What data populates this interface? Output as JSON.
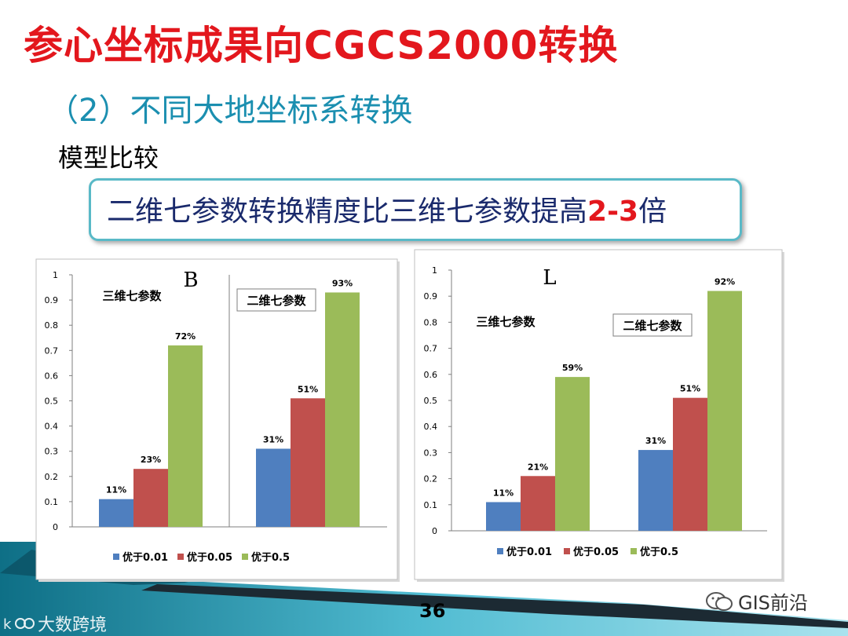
{
  "slide": {
    "title": "参心坐标成果向CGCS2000转换",
    "subtitle": "（2）不同大地坐标系转换",
    "section": "模型比较",
    "callout_prefix": "二维七参数转换精度比三维七参数提高",
    "callout_emphasis": "2-3",
    "callout_suffix": "倍",
    "page_number": "36",
    "watermark_right": "GIS前沿",
    "watermark_left": "大数跨境"
  },
  "colors": {
    "title": "#e3171d",
    "subtitle": "#1b8fb0",
    "callout_border": "#59b9c7",
    "series": [
      "#4f7fbf",
      "#c0504d",
      "#9bbb59"
    ]
  },
  "chart_data": [
    {
      "type": "bar",
      "title": "B",
      "groups": [
        "三维七参数",
        "二维七参数"
      ],
      "legend": [
        "优于0.01",
        "优于0.05",
        "优于0.5"
      ],
      "series": [
        {
          "name": "优于0.01",
          "values": [
            0.11,
            0.31
          ],
          "labels": [
            "11%",
            "31%"
          ]
        },
        {
          "name": "优于0.05",
          "values": [
            0.23,
            0.51
          ],
          "labels": [
            "23%",
            "51%"
          ]
        },
        {
          "name": "优于0.5",
          "values": [
            0.72,
            0.93
          ],
          "labels": [
            "72%",
            "93%"
          ]
        }
      ],
      "ylim": [
        0,
        1
      ],
      "yticks": [
        "0",
        "0.1",
        "0.2",
        "0.3",
        "0.4",
        "0.5",
        "0.6",
        "0.7",
        "0.8",
        "0.9",
        "1"
      ],
      "legend_position": "bottom",
      "grid": false
    },
    {
      "type": "bar",
      "title": "L",
      "groups": [
        "三维七参数",
        "二维七参数"
      ],
      "legend": [
        "优于0.01",
        "优于0.05",
        "优于0.5"
      ],
      "series": [
        {
          "name": "优于0.01",
          "values": [
            0.11,
            0.31
          ],
          "labels": [
            "11%",
            "31%"
          ]
        },
        {
          "name": "优于0.05",
          "values": [
            0.21,
            0.51
          ],
          "labels": [
            "21%",
            "51%"
          ]
        },
        {
          "name": "优于0.5",
          "values": [
            0.59,
            0.92
          ],
          "labels": [
            "59%",
            "92%"
          ]
        }
      ],
      "ylim": [
        0,
        1
      ],
      "yticks": [
        "0",
        "0.1",
        "0.2",
        "0.3",
        "0.4",
        "0.5",
        "0.6",
        "0.7",
        "0.8",
        "0.9",
        "1"
      ],
      "legend_position": "bottom",
      "grid": false
    }
  ]
}
